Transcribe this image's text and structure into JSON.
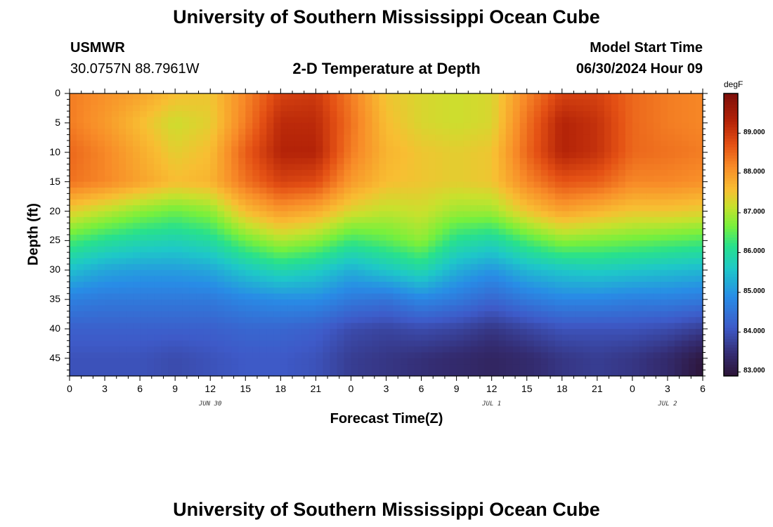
{
  "page": {
    "title": "University of Southern Mississippi Ocean Cube",
    "footer_title": "University of Southern Mississippi Ocean Cube",
    "station_id": "USMWR",
    "station_coords": "30.0757N  88.7961W",
    "center_title": "2-D Temperature at Depth",
    "model_start_label": "Model Start Time",
    "model_start_value": "06/30/2024 Hour 09"
  },
  "chart_data": {
    "type": "heatmap",
    "title": "2-D Temperature at Depth",
    "xlabel": "Forecast Time(Z)",
    "ylabel": "Depth (ft)",
    "x_tick_labels": [
      "0",
      "3",
      "6",
      "9",
      "12",
      "15",
      "18",
      "21",
      "0",
      "3",
      "6",
      "9",
      "12",
      "15",
      "18",
      "21",
      "0",
      "3",
      "6"
    ],
    "x_range_hours": [
      0,
      54
    ],
    "date_labels": [
      {
        "label": "JUN 30",
        "hour": 12
      },
      {
        "label": "JUL 1",
        "hour": 36
      },
      {
        "label": "JUL 2",
        "hour": 51
      }
    ],
    "y_tick_labels": [
      "0",
      "5",
      "10",
      "15",
      "20",
      "25",
      "30",
      "35",
      "40",
      "45"
    ],
    "y_range_ft": [
      0,
      48
    ],
    "colorbar": {
      "unit": "degF",
      "min": 82.9,
      "max": 90.0,
      "tick_labels": [
        "89.000",
        "88.000",
        "87.000",
        "86.000",
        "85.000",
        "84.000",
        "83.000"
      ],
      "tick_values": [
        89,
        88,
        87,
        86,
        85,
        84,
        83
      ]
    },
    "temperature_degF": {
      "hours": [
        0,
        3,
        6,
        9,
        12,
        15,
        18,
        21,
        24,
        27,
        30,
        33,
        36,
        39,
        42,
        45,
        48,
        51,
        54
      ],
      "depths_ft": [
        0,
        5,
        10,
        15,
        20,
        25,
        30,
        35,
        40,
        45,
        48
      ],
      "values": [
        [
          88.3,
          88.1,
          87.9,
          87.6,
          87.5,
          88.2,
          88.9,
          89.0,
          88.3,
          87.5,
          87.3,
          87.2,
          87.3,
          88.2,
          88.9,
          88.9,
          88.5,
          88.3,
          88.2
        ],
        [
          88.3,
          88.0,
          87.6,
          87.2,
          87.4,
          88.3,
          89.2,
          89.2,
          88.4,
          87.6,
          87.3,
          87.2,
          87.3,
          88.4,
          89.3,
          89.1,
          88.5,
          88.3,
          88.2
        ],
        [
          88.5,
          88.2,
          87.8,
          87.4,
          87.6,
          88.6,
          89.3,
          89.3,
          88.3,
          87.7,
          87.5,
          87.4,
          87.5,
          88.5,
          89.3,
          89.1,
          88.5,
          88.4,
          88.3
        ],
        [
          88.4,
          88.2,
          87.9,
          87.6,
          87.7,
          88.4,
          88.9,
          88.8,
          88.0,
          87.6,
          87.5,
          87.4,
          87.5,
          88.2,
          88.7,
          88.6,
          88.2,
          88.2,
          88.1
        ],
        [
          87.4,
          87.1,
          86.8,
          86.6,
          86.8,
          87.6,
          88.0,
          87.8,
          87.3,
          87.1,
          87.2,
          86.9,
          86.9,
          87.5,
          87.9,
          87.7,
          87.5,
          87.5,
          87.4
        ],
        [
          86.4,
          86.1,
          85.9,
          85.8,
          86.0,
          86.6,
          87.0,
          86.8,
          86.3,
          86.5,
          86.8,
          86.1,
          85.9,
          86.4,
          86.8,
          86.7,
          86.6,
          86.5,
          86.4
        ],
        [
          85.5,
          85.2,
          85.1,
          85.1,
          85.2,
          85.6,
          85.9,
          85.7,
          85.3,
          85.6,
          85.9,
          85.3,
          85.0,
          85.4,
          85.6,
          85.7,
          85.6,
          85.5,
          85.4
        ],
        [
          84.7,
          84.6,
          84.6,
          84.6,
          84.6,
          84.8,
          84.9,
          84.9,
          84.6,
          84.5,
          84.8,
          84.6,
          84.3,
          84.6,
          84.8,
          84.8,
          84.7,
          84.7,
          84.6
        ],
        [
          84.2,
          84.2,
          84.2,
          84.2,
          84.2,
          84.3,
          84.3,
          84.2,
          83.9,
          83.8,
          83.9,
          83.8,
          83.6,
          83.8,
          84.0,
          84.0,
          84.0,
          83.9,
          83.7
        ],
        [
          84.0,
          84.0,
          84.0,
          83.9,
          84.0,
          84.1,
          84.1,
          84.0,
          83.7,
          83.6,
          83.5,
          83.4,
          83.3,
          83.4,
          83.6,
          83.7,
          83.6,
          83.4,
          83.0
        ],
        [
          84.0,
          84.0,
          84.0,
          83.9,
          84.0,
          84.1,
          84.1,
          84.0,
          83.7,
          83.6,
          83.5,
          83.4,
          83.3,
          83.4,
          83.6,
          83.7,
          83.6,
          83.4,
          82.9
        ]
      ]
    }
  }
}
